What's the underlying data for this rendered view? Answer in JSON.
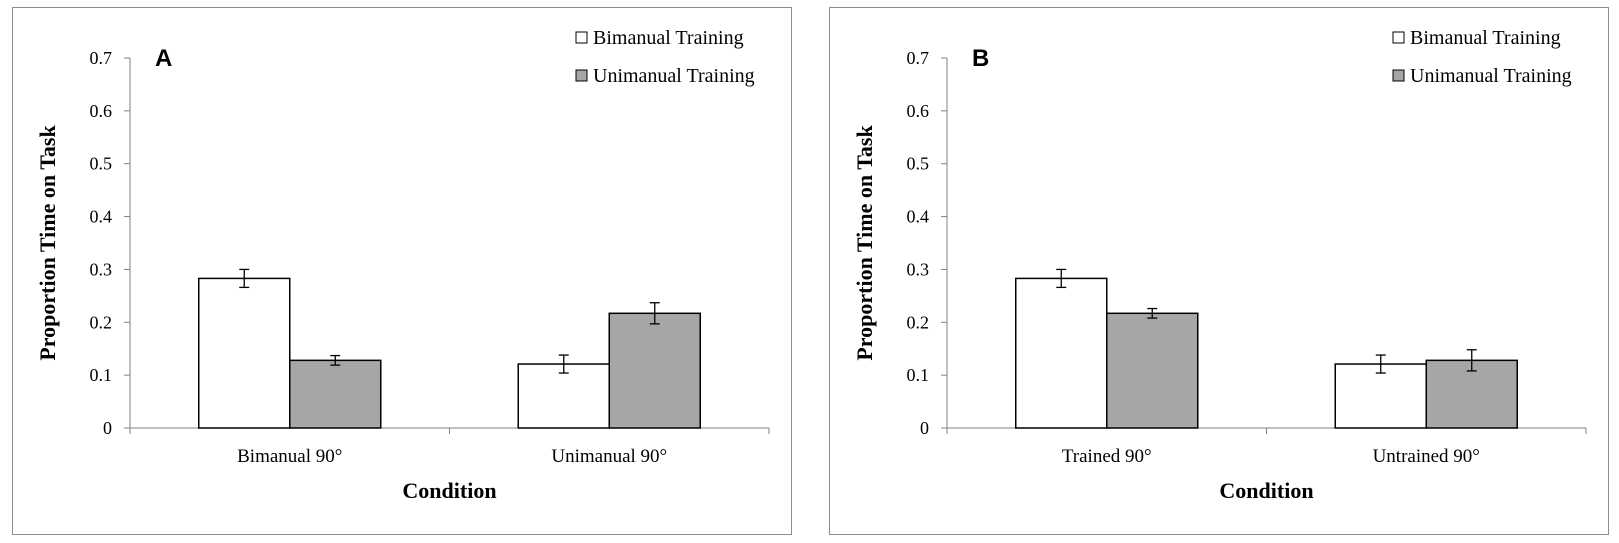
{
  "chart_data": [
    {
      "type": "bar",
      "panel_label": "A",
      "categories": [
        "Bimanual 90°",
        "Unimanual 90°"
      ],
      "series": [
        {
          "name": "Bimanual Training",
          "values": [
            0.283,
            0.121
          ],
          "errors": [
            0.017,
            0.017
          ],
          "color": "#ffffff"
        },
        {
          "name": "Unimanual Training",
          "values": [
            0.128,
            0.217
          ],
          "errors": [
            0.009,
            0.02
          ],
          "color": "#a6a6a6"
        }
      ],
      "xlabel": "Condition",
      "ylabel": "Proportion Time on Task",
      "ylim": [
        0,
        0.7
      ],
      "yticks": [
        "0",
        "0.1",
        "0.2",
        "0.3",
        "0.4",
        "0.5",
        "0.6",
        "0.7"
      ],
      "grid": false,
      "legend_position": "top-right"
    },
    {
      "type": "bar",
      "panel_label": "B",
      "categories": [
        "Trained 90°",
        "Untrained 90°"
      ],
      "series": [
        {
          "name": "Bimanual Training",
          "values": [
            0.283,
            0.121
          ],
          "errors": [
            0.017,
            0.017
          ],
          "color": "#ffffff"
        },
        {
          "name": "Unimanual Training",
          "values": [
            0.217,
            0.128
          ],
          "errors": [
            0.009,
            0.02
          ],
          "color": "#a6a6a6"
        }
      ],
      "xlabel": "Condition",
      "ylabel": "Proportion Time on Task",
      "ylim": [
        0,
        0.7
      ],
      "yticks": [
        "0",
        "0.1",
        "0.2",
        "0.3",
        "0.4",
        "0.5",
        "0.6",
        "0.7"
      ],
      "grid": false,
      "legend_position": "top-right"
    }
  ]
}
